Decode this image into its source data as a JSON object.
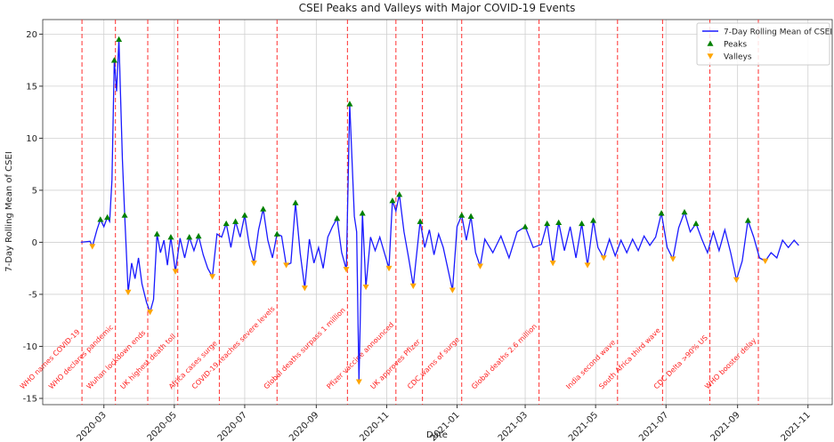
{
  "chart_data": {
    "type": "line",
    "title": "CSEI Peaks and Valleys with Major COVID-19 Events",
    "xlabel": "Date",
    "ylabel": "7-Day Rolling Mean of CSEI",
    "xlim": [
      "2020-01-08",
      "2021-11-22"
    ],
    "xticks": [
      "2020-03",
      "2020-05",
      "2020-07",
      "2020-09",
      "2020-11",
      "2021-01",
      "2021-03",
      "2021-05",
      "2021-07",
      "2021-09",
      "2021-11"
    ],
    "ylim": [
      -15.6,
      21.4
    ],
    "yticks": [
      -15,
      -10,
      -5,
      0,
      5,
      10,
      15,
      20
    ],
    "grid": true,
    "legend": "upper right",
    "series": [
      {
        "name": "7-Day Rolling Mean of CSEI",
        "color": "#1a1aff",
        "marker": "line",
        "x": [
          "2020-02-10",
          "2020-02-18",
          "2020-02-20",
          "2020-02-24",
          "2020-02-27",
          "2020-03-01",
          "2020-03-04",
          "2020-03-06",
          "2020-03-08",
          "2020-03-10",
          "2020-03-12",
          "2020-03-14",
          "2020-03-17",
          "2020-03-19",
          "2020-03-22",
          "2020-03-25",
          "2020-03-28",
          "2020-03-31",
          "2020-04-03",
          "2020-04-07",
          "2020-04-10",
          "2020-04-13",
          "2020-04-16",
          "2020-04-19",
          "2020-04-22",
          "2020-04-25",
          "2020-04-28",
          "2020-05-02",
          "2020-05-06",
          "2020-05-10",
          "2020-05-14",
          "2020-05-18",
          "2020-05-22",
          "2020-05-26",
          "2020-05-30",
          "2020-06-03",
          "2020-06-07",
          "2020-06-11",
          "2020-06-15",
          "2020-06-19",
          "2020-06-23",
          "2020-06-27",
          "2020-07-01",
          "2020-07-05",
          "2020-07-09",
          "2020-07-13",
          "2020-07-17",
          "2020-07-21",
          "2020-07-25",
          "2020-07-29",
          "2020-08-02",
          "2020-08-06",
          "2020-08-10",
          "2020-08-14",
          "2020-08-18",
          "2020-08-22",
          "2020-08-26",
          "2020-08-30",
          "2020-09-03",
          "2020-09-07",
          "2020-09-11",
          "2020-09-15",
          "2020-09-19",
          "2020-09-23",
          "2020-09-27",
          "2020-09-30",
          "2020-10-04",
          "2020-10-06",
          "2020-10-08",
          "2020-10-11",
          "2020-10-14",
          "2020-10-18",
          "2020-10-22",
          "2020-10-26",
          "2020-10-30",
          "2020-11-03",
          "2020-11-06",
          "2020-11-09",
          "2020-11-12",
          "2020-11-16",
          "2020-11-20",
          "2020-11-24",
          "2020-11-30",
          "2020-12-04",
          "2020-12-08",
          "2020-12-12",
          "2020-12-16",
          "2020-12-20",
          "2020-12-28",
          "2021-01-01",
          "2021-01-05",
          "2021-01-09",
          "2021-01-13",
          "2021-01-17",
          "2021-01-21",
          "2021-01-25",
          "2021-02-01",
          "2021-02-08",
          "2021-02-15",
          "2021-02-22",
          "2021-03-01",
          "2021-03-08",
          "2021-03-15",
          "2021-03-20",
          "2021-03-25",
          "2021-03-30",
          "2021-04-04",
          "2021-04-09",
          "2021-04-14",
          "2021-04-19",
          "2021-04-24",
          "2021-04-29",
          "2021-05-03",
          "2021-05-08",
          "2021-05-13",
          "2021-05-18",
          "2021-05-23",
          "2021-05-28",
          "2021-06-02",
          "2021-06-07",
          "2021-06-12",
          "2021-06-17",
          "2021-06-22",
          "2021-06-27",
          "2021-07-02",
          "2021-07-07",
          "2021-07-12",
          "2021-07-17",
          "2021-07-22",
          "2021-07-27",
          "2021-08-01",
          "2021-08-06",
          "2021-08-11",
          "2021-08-16",
          "2021-08-21",
          "2021-08-26",
          "2021-08-31",
          "2021-09-05",
          "2021-09-10",
          "2021-09-15",
          "2021-09-20",
          "2021-09-25",
          "2021-09-30",
          "2021-10-05",
          "2021-10-10",
          "2021-10-15",
          "2021-10-20",
          "2021-10-24"
        ],
        "values": [
          0,
          0.1,
          -0.4,
          1.2,
          2.2,
          1.5,
          2.4,
          2.0,
          6,
          17.5,
          14.5,
          19.5,
          8,
          2.6,
          -4.8,
          -2,
          -3.5,
          -1.5,
          -4,
          -5.8,
          -6.7,
          -5.5,
          0.8,
          -1,
          0.2,
          -2.2,
          0.5,
          -2.8,
          0.4,
          -1.5,
          0.5,
          -0.8,
          0.6,
          -1.2,
          -2.5,
          -3.3,
          0.8,
          0.5,
          1.8,
          -0.5,
          2.0,
          0.5,
          2.6,
          -0.3,
          -2.0,
          1.2,
          3.2,
          0.2,
          -1.5,
          0.8,
          0.6,
          -2.2,
          -2.0,
          3.8,
          -1,
          -4.4,
          0.3,
          -2.0,
          -0.5,
          -2.5,
          0.5,
          1.5,
          2.3,
          -1.0,
          -2.6,
          13.3,
          2.5,
          1,
          -13.4,
          2.8,
          -4.3,
          0.5,
          -0.8,
          0.5,
          -1.0,
          -2.5,
          4.0,
          3.0,
          4.6,
          1.0,
          -1.5,
          -4.2,
          2.0,
          -0.5,
          1.2,
          -1.2,
          0.8,
          -0.5,
          -4.6,
          1.5,
          2.6,
          0.2,
          2.5,
          -1.0,
          -2.3,
          0.3,
          -1.0,
          0.6,
          -1.5,
          1.0,
          1.5,
          -0.5,
          -0.2,
          1.8,
          -2.0,
          1.9,
          -0.8,
          1.5,
          -1.5,
          1.8,
          -2.2,
          2.1,
          -0.5,
          -1.5,
          0.3,
          -1.3,
          0.2,
          -1.0,
          0.3,
          -0.8,
          0.6,
          -0.3,
          0.5,
          2.8,
          -0.5,
          -1.6,
          1.4,
          2.9,
          1.0,
          1.8,
          0.3,
          -1.0,
          1.0,
          -0.8,
          1.2,
          -1.0,
          -3.6,
          -1.8,
          2.1,
          0.5,
          -1.5,
          -1.8,
          -1.0,
          -1.5,
          0.2,
          -0.5,
          0.2,
          -0.3
        ]
      },
      {
        "name": "Peaks",
        "color": "#008000",
        "marker": "up",
        "x": [
          "2020-02-27",
          "2020-03-04",
          "2020-03-10",
          "2020-03-14",
          "2020-03-19",
          "2020-04-16",
          "2020-04-28",
          "2020-05-14",
          "2020-05-22",
          "2020-06-15",
          "2020-06-23",
          "2020-07-01",
          "2020-07-17",
          "2020-07-29",
          "2020-08-14",
          "2020-09-19",
          "2020-09-30",
          "2020-10-11",
          "2020-11-06",
          "2020-11-12",
          "2020-11-30",
          "2021-01-05",
          "2021-01-13",
          "2021-03-01",
          "2021-03-20",
          "2021-03-30",
          "2021-04-19",
          "2021-04-29",
          "2021-06-27",
          "2021-07-17",
          "2021-07-27",
          "2021-09-10"
        ],
        "values": [
          2.2,
          2.4,
          17.5,
          19.5,
          2.6,
          0.8,
          0.5,
          0.5,
          0.6,
          1.8,
          2.0,
          2.6,
          3.2,
          0.8,
          3.8,
          2.3,
          13.3,
          2.8,
          4.0,
          4.6,
          2.0,
          2.6,
          2.5,
          1.5,
          1.8,
          1.9,
          1.8,
          2.1,
          2.8,
          2.9,
          1.8,
          2.1
        ]
      },
      {
        "name": "Valleys",
        "color": "#ffa500",
        "marker": "down",
        "x": [
          "2020-02-20",
          "2020-03-22",
          "2020-04-10",
          "2020-05-02",
          "2020-06-03",
          "2020-07-09",
          "2020-08-06",
          "2020-08-22",
          "2020-09-27",
          "2020-10-08",
          "2020-10-14",
          "2020-11-03",
          "2020-11-24",
          "2020-12-28",
          "2021-01-21",
          "2021-03-25",
          "2021-04-24",
          "2021-05-08",
          "2021-07-07",
          "2021-08-31",
          "2021-09-25"
        ],
        "values": [
          -0.4,
          -4.8,
          -6.7,
          -2.8,
          -3.3,
          -2.0,
          -2.2,
          -4.4,
          -2.6,
          -13.4,
          -4.3,
          -2.5,
          -4.2,
          -4.6,
          -2.3,
          -2.0,
          -2.2,
          -1.5,
          -1.6,
          -3.6,
          -1.8
        ]
      }
    ],
    "events": [
      {
        "date": "2020-02-11",
        "label": "WHO names COVID-19"
      },
      {
        "date": "2020-03-11",
        "label": "WHO declares pandemic"
      },
      {
        "date": "2020-04-08",
        "label": "Wuhan lockdown ends"
      },
      {
        "date": "2020-05-04",
        "label": "UK highest death toll"
      },
      {
        "date": "2020-06-09",
        "label": "Africa cases surge"
      },
      {
        "date": "2020-07-29",
        "label": "COVID-19 reaches severe levels"
      },
      {
        "date": "2020-09-28",
        "label": "Global deaths surpass 1 million"
      },
      {
        "date": "2020-11-09",
        "label": "Pfizer vaccine announced"
      },
      {
        "date": "2020-12-02",
        "label": "UK approves Pfizer"
      },
      {
        "date": "2021-01-05",
        "label": "CDC warns of surge"
      },
      {
        "date": "2021-03-13",
        "label": "Global deaths 2.6 million"
      },
      {
        "date": "2021-05-20",
        "label": "India second wave"
      },
      {
        "date": "2021-06-28",
        "label": "South Africa third wave"
      },
      {
        "date": "2021-08-08",
        "label": "CDC Delta >90% US"
      },
      {
        "date": "2021-09-19",
        "label": "WHO booster delay"
      }
    ]
  }
}
